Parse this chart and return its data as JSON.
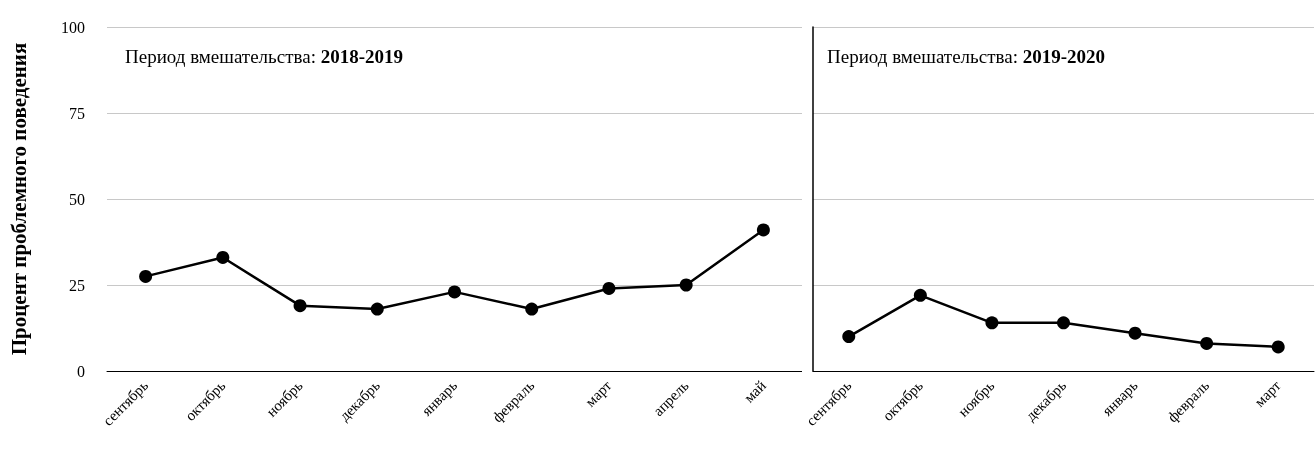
{
  "chart_data": [
    {
      "type": "line",
      "ylabel": "Процент проблемного поведения",
      "annotations": [
        "Период вмешательства: 2018-2019"
      ],
      "categories": [
        "сентябрь",
        "октябрь",
        "ноябрь",
        "декабрь",
        "январь",
        "февраль",
        "март",
        "апрель",
        "май"
      ],
      "series": [
        {
          "color": "#000000",
          "values": [
            27.5,
            33,
            19,
            18,
            23,
            18,
            24,
            25,
            41
          ]
        }
      ],
      "ylim": [
        0,
        100
      ],
      "yticks": [
        0,
        25,
        50,
        75,
        100
      ],
      "grid": "y",
      "marker": "circle",
      "line_style": "solid"
    },
    {
      "type": "line",
      "annotations": [
        "Период вмешательства: 2019-2020"
      ],
      "categories": [
        "сентябрь",
        "октябрь",
        "ноябрь",
        "декабрь",
        "январь",
        "февраль",
        "март"
      ],
      "series": [
        {
          "color": "#000000",
          "values": [
            10,
            22,
            14,
            14,
            11,
            8,
            7
          ]
        }
      ],
      "ylim": [
        0,
        100
      ],
      "yticks": [
        0,
        25,
        50,
        75,
        100
      ],
      "grid": "y",
      "marker": "circle",
      "line_style": "solid",
      "tick_labels": "x"
    }
  ]
}
